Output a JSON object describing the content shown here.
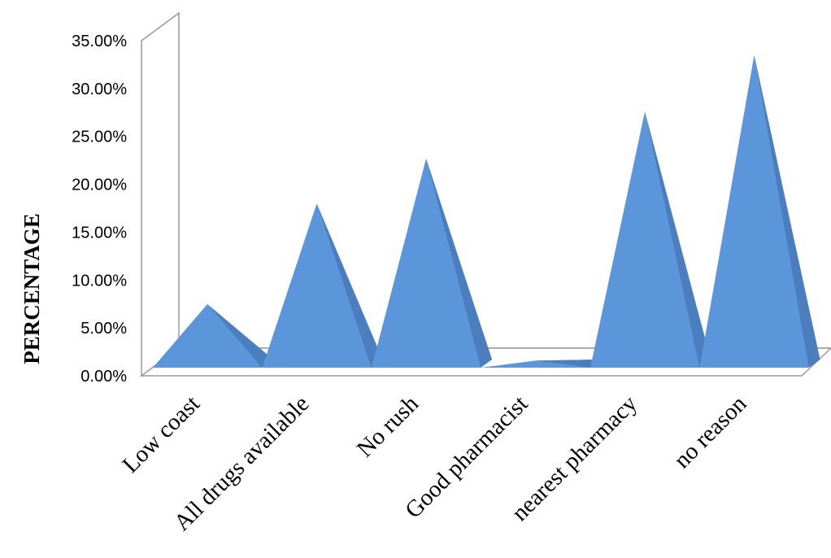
{
  "chart_data": {
    "type": "area",
    "style": "3d-pyramid",
    "categories": [
      "Low coast",
      "All drugs available",
      "No rush",
      "Good pharmacist",
      "nearest pharmacy",
      "no reason"
    ],
    "series": [
      {
        "values": [
          6.8,
          17.3,
          22.0,
          0.9,
          26.9,
          32.8
        ]
      }
    ],
    "ylabel": "PERCENTAGE",
    "xlabel": "",
    "title": "",
    "ylim": [
      0,
      35
    ],
    "yticks": [
      "0.00%",
      "5.00%",
      "10.00%",
      "15.00%",
      "20.00%",
      "25.00%",
      "30.00%",
      "35.00%"
    ],
    "grid": false,
    "legend": "none",
    "colors": {
      "face": "#5B96DB",
      "side": "#4A7EBF",
      "shadow": "#3F72AD",
      "axis": "#9A9A9A"
    }
  }
}
